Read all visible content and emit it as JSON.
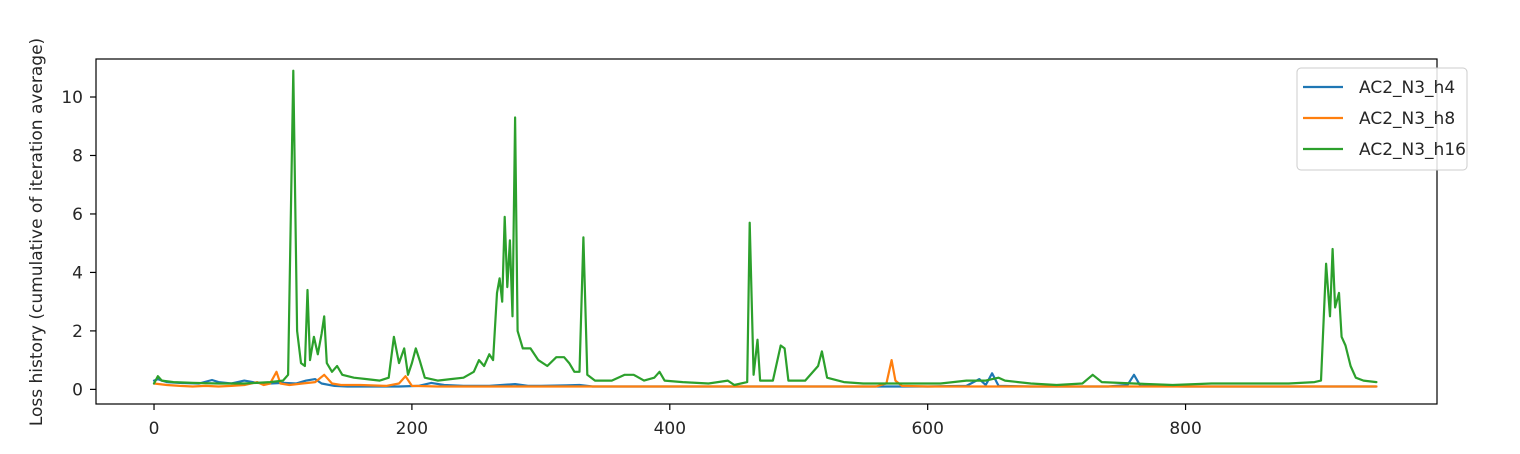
{
  "chart_data": {
    "type": "line",
    "title": "",
    "xlabel": "",
    "ylabel": "Loss history (cumulative of iteration average)",
    "xlim": [
      -45,
      995
    ],
    "ylim": [
      -0.5,
      11.3
    ],
    "xticks": [
      0,
      200,
      400,
      600,
      800
    ],
    "yticks": [
      0,
      2,
      4,
      6,
      8,
      10
    ],
    "grid": false,
    "legend_position": "top-right",
    "series": [
      {
        "name": "AC2_N3_h4",
        "color": "#1f77b4",
        "points": [
          [
            0,
            0.3
          ],
          [
            3,
            0.35
          ],
          [
            6,
            0.3
          ],
          [
            10,
            0.25
          ],
          [
            20,
            0.22
          ],
          [
            35,
            0.2
          ],
          [
            45,
            0.32
          ],
          [
            50,
            0.25
          ],
          [
            60,
            0.2
          ],
          [
            70,
            0.3
          ],
          [
            80,
            0.22
          ],
          [
            90,
            0.2
          ],
          [
            100,
            0.22
          ],
          [
            110,
            0.2
          ],
          [
            118,
            0.3
          ],
          [
            125,
            0.35
          ],
          [
            130,
            0.2
          ],
          [
            140,
            0.12
          ],
          [
            150,
            0.1
          ],
          [
            170,
            0.1
          ],
          [
            190,
            0.1
          ],
          [
            205,
            0.12
          ],
          [
            215,
            0.22
          ],
          [
            225,
            0.15
          ],
          [
            240,
            0.12
          ],
          [
            260,
            0.12
          ],
          [
            280,
            0.18
          ],
          [
            290,
            0.12
          ],
          [
            300,
            0.12
          ],
          [
            320,
            0.14
          ],
          [
            330,
            0.15
          ],
          [
            340,
            0.1
          ],
          [
            360,
            0.1
          ],
          [
            400,
            0.1
          ],
          [
            450,
            0.1
          ],
          [
            500,
            0.1
          ],
          [
            550,
            0.1
          ],
          [
            600,
            0.1
          ],
          [
            630,
            0.12
          ],
          [
            640,
            0.35
          ],
          [
            645,
            0.15
          ],
          [
            650,
            0.55
          ],
          [
            655,
            0.12
          ],
          [
            680,
            0.1
          ],
          [
            700,
            0.1
          ],
          [
            740,
            0.1
          ],
          [
            755,
            0.15
          ],
          [
            760,
            0.5
          ],
          [
            765,
            0.12
          ],
          [
            800,
            0.1
          ],
          [
            850,
            0.1
          ],
          [
            900,
            0.1
          ],
          [
            948,
            0.1
          ]
        ]
      },
      {
        "name": "AC2_N3_h8",
        "color": "#ff7f0e",
        "points": [
          [
            0,
            0.2
          ],
          [
            10,
            0.15
          ],
          [
            20,
            0.12
          ],
          [
            30,
            0.1
          ],
          [
            40,
            0.12
          ],
          [
            50,
            0.1
          ],
          [
            60,
            0.12
          ],
          [
            70,
            0.15
          ],
          [
            80,
            0.25
          ],
          [
            85,
            0.15
          ],
          [
            90,
            0.2
          ],
          [
            95,
            0.6
          ],
          [
            98,
            0.2
          ],
          [
            105,
            0.15
          ],
          [
            115,
            0.2
          ],
          [
            125,
            0.25
          ],
          [
            132,
            0.5
          ],
          [
            138,
            0.2
          ],
          [
            145,
            0.15
          ],
          [
            160,
            0.15
          ],
          [
            180,
            0.12
          ],
          [
            190,
            0.2
          ],
          [
            195,
            0.45
          ],
          [
            200,
            0.12
          ],
          [
            220,
            0.1
          ],
          [
            260,
            0.1
          ],
          [
            300,
            0.1
          ],
          [
            350,
            0.1
          ],
          [
            400,
            0.1
          ],
          [
            450,
            0.1
          ],
          [
            500,
            0.1
          ],
          [
            560,
            0.1
          ],
          [
            568,
            0.2
          ],
          [
            572,
            1.0
          ],
          [
            575,
            0.3
          ],
          [
            580,
            0.12
          ],
          [
            600,
            0.1
          ],
          [
            650,
            0.1
          ],
          [
            700,
            0.1
          ],
          [
            750,
            0.1
          ],
          [
            800,
            0.1
          ],
          [
            850,
            0.1
          ],
          [
            900,
            0.1
          ],
          [
            948,
            0.1
          ]
        ]
      },
      {
        "name": "AC2_N3_h16",
        "color": "#2ca02c",
        "points": [
          [
            0,
            0.2
          ],
          [
            3,
            0.45
          ],
          [
            6,
            0.3
          ],
          [
            15,
            0.25
          ],
          [
            30,
            0.22
          ],
          [
            50,
            0.2
          ],
          [
            70,
            0.2
          ],
          [
            90,
            0.25
          ],
          [
            100,
            0.3
          ],
          [
            104,
            0.5
          ],
          [
            108,
            10.9
          ],
          [
            111,
            2.0
          ],
          [
            114,
            0.9
          ],
          [
            117,
            0.8
          ],
          [
            119,
            3.4
          ],
          [
            121,
            1.0
          ],
          [
            124,
            1.8
          ],
          [
            127,
            1.2
          ],
          [
            130,
            1.9
          ],
          [
            132,
            2.5
          ],
          [
            134,
            0.9
          ],
          [
            138,
            0.6
          ],
          [
            142,
            0.8
          ],
          [
            146,
            0.5
          ],
          [
            155,
            0.4
          ],
          [
            165,
            0.35
          ],
          [
            175,
            0.3
          ],
          [
            182,
            0.4
          ],
          [
            186,
            1.8
          ],
          [
            190,
            0.9
          ],
          [
            194,
            1.4
          ],
          [
            197,
            0.5
          ],
          [
            200,
            0.9
          ],
          [
            203,
            1.4
          ],
          [
            206,
            1.0
          ],
          [
            210,
            0.4
          ],
          [
            220,
            0.3
          ],
          [
            230,
            0.35
          ],
          [
            240,
            0.4
          ],
          [
            248,
            0.6
          ],
          [
            252,
            1.0
          ],
          [
            256,
            0.8
          ],
          [
            260,
            1.2
          ],
          [
            263,
            1.0
          ],
          [
            266,
            3.3
          ],
          [
            268,
            3.8
          ],
          [
            270,
            3.0
          ],
          [
            272,
            5.9
          ],
          [
            274,
            3.5
          ],
          [
            276,
            5.1
          ],
          [
            278,
            2.5
          ],
          [
            280,
            9.3
          ],
          [
            282,
            2.0
          ],
          [
            286,
            1.4
          ],
          [
            292,
            1.4
          ],
          [
            298,
            1.0
          ],
          [
            305,
            0.8
          ],
          [
            312,
            1.1
          ],
          [
            318,
            1.1
          ],
          [
            322,
            0.9
          ],
          [
            326,
            0.6
          ],
          [
            330,
            0.6
          ],
          [
            333,
            5.2
          ],
          [
            336,
            0.5
          ],
          [
            342,
            0.3
          ],
          [
            355,
            0.3
          ],
          [
            365,
            0.5
          ],
          [
            372,
            0.5
          ],
          [
            380,
            0.3
          ],
          [
            388,
            0.4
          ],
          [
            392,
            0.6
          ],
          [
            396,
            0.3
          ],
          [
            410,
            0.25
          ],
          [
            430,
            0.2
          ],
          [
            445,
            0.3
          ],
          [
            450,
            0.15
          ],
          [
            460,
            0.25
          ],
          [
            462,
            5.7
          ],
          [
            465,
            0.5
          ],
          [
            468,
            1.7
          ],
          [
            470,
            0.3
          ],
          [
            480,
            0.3
          ],
          [
            486,
            1.5
          ],
          [
            489,
            1.4
          ],
          [
            492,
            0.3
          ],
          [
            505,
            0.3
          ],
          [
            515,
            0.8
          ],
          [
            518,
            1.3
          ],
          [
            522,
            0.4
          ],
          [
            535,
            0.25
          ],
          [
            550,
            0.2
          ],
          [
            570,
            0.2
          ],
          [
            590,
            0.2
          ],
          [
            610,
            0.2
          ],
          [
            630,
            0.3
          ],
          [
            645,
            0.3
          ],
          [
            655,
            0.4
          ],
          [
            660,
            0.3
          ],
          [
            680,
            0.2
          ],
          [
            700,
            0.15
          ],
          [
            720,
            0.2
          ],
          [
            728,
            0.5
          ],
          [
            735,
            0.25
          ],
          [
            760,
            0.2
          ],
          [
            790,
            0.15
          ],
          [
            820,
            0.2
          ],
          [
            850,
            0.2
          ],
          [
            880,
            0.2
          ],
          [
            900,
            0.25
          ],
          [
            905,
            0.3
          ],
          [
            909,
            4.3
          ],
          [
            912,
            2.5
          ],
          [
            914,
            4.8
          ],
          [
            916,
            2.8
          ],
          [
            919,
            3.3
          ],
          [
            921,
            1.8
          ],
          [
            924,
            1.5
          ],
          [
            928,
            0.8
          ],
          [
            932,
            0.4
          ],
          [
            938,
            0.3
          ],
          [
            948,
            0.25
          ]
        ]
      }
    ]
  }
}
